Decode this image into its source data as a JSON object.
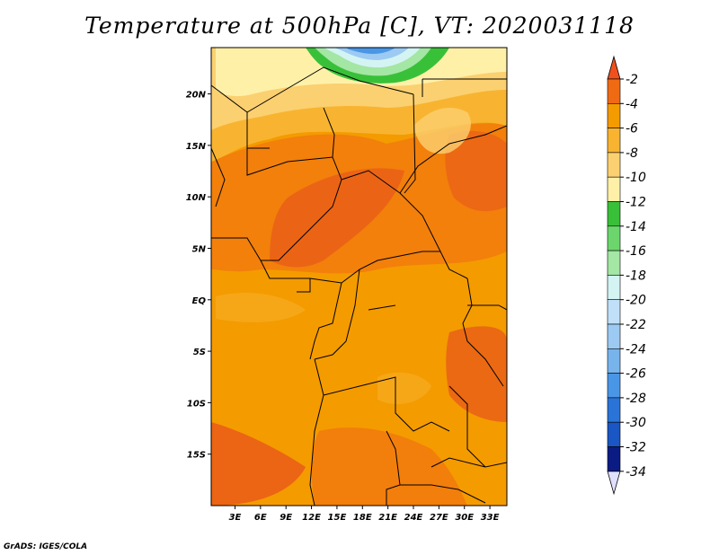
{
  "title": "Temperature at 500hPa [C], VT: 2020031118",
  "credit": "GrADS: IGES/COLA",
  "map": {
    "lat_labels": [
      {
        "lat": 20,
        "label": "20N"
      },
      {
        "lat": 15,
        "label": "15N"
      },
      {
        "lat": 10,
        "label": "10N"
      },
      {
        "lat": 5,
        "label": "5N"
      },
      {
        "lat": 0,
        "label": "EQ"
      },
      {
        "lat": -5,
        "label": "5S"
      },
      {
        "lat": -10,
        "label": "10S"
      },
      {
        "lat": -15,
        "label": "15S"
      }
    ],
    "lon_labels": [
      {
        "lon": 3,
        "label": "3E"
      },
      {
        "lon": 6,
        "label": "6E"
      },
      {
        "lon": 9,
        "label": "9E"
      },
      {
        "lon": 12,
        "label": "12E"
      },
      {
        "lon": 15,
        "label": "15E"
      },
      {
        "lon": 18,
        "label": "18E"
      },
      {
        "lon": 21,
        "label": "21E"
      },
      {
        "lon": 24,
        "label": "24E"
      },
      {
        "lon": 27,
        "label": "27E"
      },
      {
        "lon": 30,
        "label": "30E"
      },
      {
        "lon": 33,
        "label": "33E"
      }
    ],
    "lon_range": [
      0.2,
      35
    ],
    "lat_range": [
      -20,
      24.5
    ]
  },
  "colorbar": {
    "labels": [
      "-2",
      "-4",
      "-6",
      "-8",
      "-10",
      "-12",
      "-14",
      "-16",
      "-18",
      "-20",
      "-22",
      "-24",
      "-26",
      "-28",
      "-30",
      "-32",
      "-34"
    ],
    "top_arrow_color": "#f0501e",
    "bottom_arrow_color": "#e0e0ff",
    "colors": [
      "#f06a14",
      "#f49b00",
      "#f8b430",
      "#fbd070",
      "#fff0a8",
      "#39c039",
      "#6cd66c",
      "#a4e6a4",
      "#d4f4f4",
      "#c0e0f8",
      "#9ccaf2",
      "#78b4ec",
      "#4a96e6",
      "#2a74d8",
      "#1a56c4",
      "#0a1c84"
    ]
  }
}
